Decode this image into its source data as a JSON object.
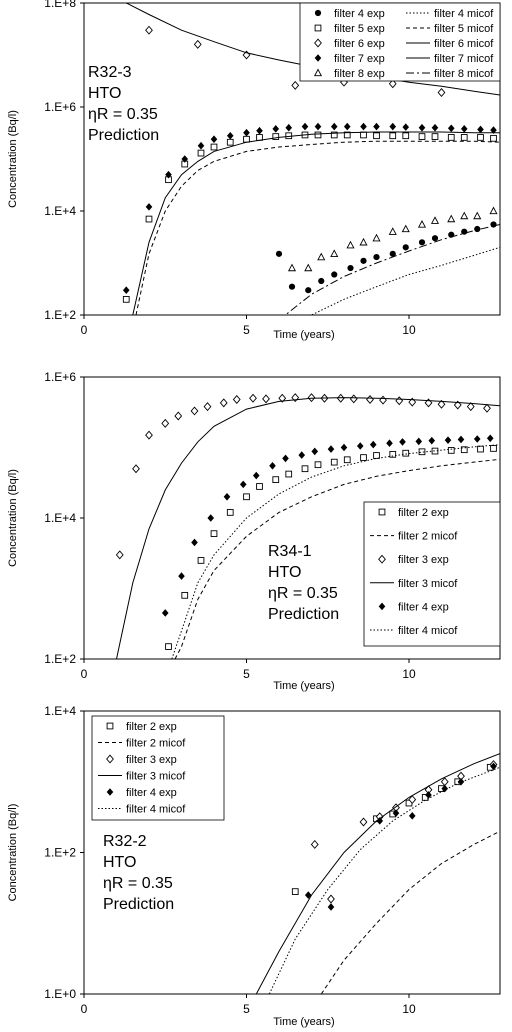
{
  "chart_data": [
    {
      "type": "scatter",
      "xlabel": "Time (years)",
      "ylabel": "Concentration (Bq/l)",
      "xlim": [
        0,
        12.8
      ],
      "ylim": [
        100,
        100000000
      ],
      "yscale": "log",
      "xticks": [
        "0",
        "5",
        "10"
      ],
      "yticks": [
        "1.E+2",
        "1.E+4",
        "1.E+6",
        "1.E+8"
      ],
      "legend_position": "top-right",
      "legend_columns": 2,
      "annotation": [
        "R32-3",
        "HTO",
        "ηR = 0.35",
        "Prediction"
      ],
      "series": [
        {
          "name": "filter 4 exp",
          "kind": "points",
          "marker": "circle-filled",
          "x": [
            6.0,
            6.4,
            6.9,
            7.3,
            7.7,
            8.2,
            8.6,
            9.0,
            9.5,
            9.9,
            10.4,
            10.8,
            11.3,
            11.7,
            12.1,
            12.6
          ],
          "y": [
            1500,
            350,
            300,
            450,
            600,
            800,
            1100,
            1300,
            1500,
            2000,
            2500,
            3000,
            3500,
            4000,
            4500,
            5500
          ]
        },
        {
          "name": "filter 5 exp",
          "kind": "points",
          "marker": "square-open",
          "x": [
            1.3,
            2.0,
            2.6,
            3.1,
            3.6,
            4.0,
            4.5,
            5.0,
            5.4,
            5.9,
            6.3,
            6.8,
            7.2,
            7.7,
            8.1,
            8.6,
            9.0,
            9.5,
            9.9,
            10.4,
            10.8,
            11.3,
            11.7,
            12.2,
            12.6
          ],
          "y": [
            200,
            7000,
            40000,
            80000,
            130000,
            170000,
            210000,
            240000,
            260000,
            270000,
            280000,
            290000,
            290000,
            290000,
            290000,
            290000,
            280000,
            280000,
            280000,
            270000,
            270000,
            260000,
            260000,
            260000,
            250000
          ]
        },
        {
          "name": "filter 6 exp",
          "kind": "points",
          "marker": "diamond-open",
          "x": [
            2.0,
            3.5,
            5.0,
            6.5,
            8.0,
            9.5,
            11.0
          ],
          "y": [
            30000000,
            16000000,
            10000000,
            2600000,
            3000000,
            2800000,
            1900000
          ]
        },
        {
          "name": "filter 7 exp",
          "kind": "points",
          "marker": "diamond-filled",
          "x": [
            1.3,
            2.0,
            2.6,
            3.1,
            3.6,
            4.0,
            4.5,
            5.0,
            5.4,
            5.9,
            6.3,
            6.8,
            7.2,
            7.7,
            8.1,
            8.6,
            9.0,
            9.5,
            9.9,
            10.4,
            10.8,
            11.3,
            11.7,
            12.2,
            12.6
          ],
          "y": [
            300,
            12000,
            50000,
            100000,
            180000,
            240000,
            280000,
            320000,
            350000,
            380000,
            400000,
            420000,
            420000,
            420000,
            420000,
            420000,
            420000,
            420000,
            410000,
            400000,
            400000,
            390000,
            380000,
            370000,
            360000
          ]
        },
        {
          "name": "filter 8 exp",
          "kind": "points",
          "marker": "triangle-open",
          "x": [
            6.4,
            6.9,
            7.3,
            7.7,
            8.2,
            8.6,
            9.0,
            9.5,
            9.9,
            10.4,
            10.8,
            11.3,
            11.7,
            12.1,
            12.6
          ],
          "y": [
            800,
            800,
            1300,
            1500,
            2200,
            2500,
            3000,
            4000,
            4500,
            5500,
            6500,
            7000,
            8000,
            8000,
            10000
          ]
        },
        {
          "name": "filter 4 micof",
          "kind": "line",
          "dash": "1.5,2",
          "x": [
            6.3,
            7.0,
            8.0,
            9.0,
            10.0,
            11.0,
            12.0,
            12.8
          ],
          "y": [
            50,
            100,
            200,
            350,
            600,
            900,
            1400,
            2000
          ]
        },
        {
          "name": "filter 5 micof",
          "kind": "line",
          "dash": "4,3",
          "x": [
            1.6,
            2.0,
            2.5,
            3.0,
            3.5,
            4.0,
            5.0,
            6.0,
            7.0,
            8.0,
            9.0,
            10.0,
            11.0,
            12.0,
            12.8
          ],
          "y": [
            100,
            1500,
            10000,
            30000,
            60000,
            90000,
            140000,
            170000,
            190000,
            210000,
            220000,
            220000,
            220000,
            220000,
            210000
          ]
        },
        {
          "name": "filter 6 micof",
          "kind": "line",
          "dash": "",
          "x": [
            1.3,
            2.0,
            3.0,
            4.0,
            5.0,
            6.0,
            7.0,
            8.0,
            9.0,
            10.0,
            11.0,
            12.0,
            12.8
          ],
          "y": [
            100000000,
            60000000,
            30000000,
            18000000,
            11000000,
            8000000,
            6000000,
            4700000,
            3800000,
            3000000,
            2500000,
            2000000,
            1700000
          ]
        },
        {
          "name": "filter 7 micof",
          "kind": "line",
          "dash": "",
          "x": [
            1.5,
            2.0,
            2.5,
            3.0,
            3.5,
            4.0,
            5.0,
            6.0,
            7.0,
            8.0,
            9.0,
            10.0,
            11.0,
            12.0,
            12.8
          ],
          "y": [
            100,
            2500,
            18000,
            50000,
            90000,
            140000,
            210000,
            260000,
            300000,
            320000,
            330000,
            330000,
            330000,
            320000,
            320000
          ]
        },
        {
          "name": "filter 8 micof",
          "kind": "line",
          "dash": "8,3,2,3",
          "x": [
            5.6,
            6.0,
            7.0,
            8.0,
            9.0,
            10.0,
            11.0,
            12.0,
            12.8
          ],
          "y": [
            50,
            80,
            250,
            550,
            1000,
            1700,
            2800,
            4200,
            5500
          ]
        }
      ]
    },
    {
      "type": "scatter",
      "xlabel": "Time (years)",
      "ylabel": "Concentration (Bq/l)",
      "xlim": [
        0,
        12.8
      ],
      "ylim": [
        100,
        1000000
      ],
      "yscale": "log",
      "xticks": [
        "0",
        "5",
        "10"
      ],
      "yticks": [
        "1.E+2",
        "1.E+4",
        "1.E+6"
      ],
      "legend_position": "bottom-right",
      "legend_columns": 1,
      "annotation": [
        "R34-1",
        "HTO",
        "ηR = 0.35",
        "Prediction"
      ],
      "series": [
        {
          "name": "filter 2 exp",
          "kind": "points",
          "marker": "square-open",
          "x": [
            2.6,
            3.1,
            3.6,
            4.0,
            4.5,
            5.0,
            5.4,
            5.9,
            6.3,
            6.8,
            7.2,
            7.7,
            8.1,
            8.6,
            9.0,
            9.5,
            9.9,
            10.4,
            10.8,
            11.3,
            11.7,
            12.2,
            12.6
          ],
          "y": [
            150,
            800,
            2500,
            6000,
            12000,
            20000,
            28000,
            35000,
            42000,
            50000,
            57000,
            62000,
            67000,
            72000,
            77000,
            80000,
            83000,
            87000,
            89000,
            91000,
            93000,
            95000,
            97000
          ]
        },
        {
          "name": "filter 2 micof",
          "kind": "line",
          "dash": "4,3",
          "x": [
            2.8,
            3.0,
            3.5,
            4.0,
            5.0,
            6.0,
            7.0,
            8.0,
            9.0,
            10.0,
            11.0,
            12.0,
            12.8
          ],
          "y": [
            100,
            150,
            700,
            1800,
            5500,
            12000,
            20000,
            30000,
            39000,
            47000,
            55000,
            62000,
            68000
          ]
        },
        {
          "name": "filter 3 exp",
          "kind": "points",
          "marker": "diamond-open",
          "x": [
            1.1,
            1.6,
            2.0,
            2.5,
            2.9,
            3.4,
            3.8,
            4.3,
            4.7,
            5.2,
            5.6,
            6.1,
            6.5,
            7.0,
            7.4,
            7.9,
            8.3,
            8.8,
            9.2,
            9.7,
            10.1,
            10.6,
            11.0,
            11.5,
            11.9,
            12.4
          ],
          "y": [
            3000,
            50000,
            150000,
            220000,
            280000,
            330000,
            380000,
            430000,
            480000,
            500000,
            490000,
            500000,
            510000,
            510000,
            500000,
            500000,
            490000,
            480000,
            470000,
            460000,
            440000,
            430000,
            410000,
            400000,
            380000,
            360000
          ]
        },
        {
          "name": "filter 3 micof",
          "kind": "line",
          "dash": "",
          "x": [
            1.0,
            1.5,
            2.0,
            2.5,
            3.0,
            3.5,
            4.0,
            5.0,
            6.0,
            7.0,
            8.0,
            9.0,
            10.0,
            11.0,
            12.0,
            12.8
          ],
          "y": [
            100,
            1200,
            7000,
            25000,
            60000,
            120000,
            200000,
            350000,
            450000,
            500000,
            510000,
            500000,
            480000,
            450000,
            420000,
            390000
          ]
        },
        {
          "name": "filter 4 exp",
          "kind": "points",
          "marker": "diamond-filled",
          "x": [
            2.5,
            3.0,
            3.4,
            3.9,
            4.4,
            4.9,
            5.3,
            5.8,
            6.2,
            6.7,
            7.1,
            7.6,
            8.0,
            8.5,
            8.9,
            9.4,
            9.8,
            10.3,
            10.7,
            11.2,
            11.6,
            12.1,
            12.5
          ],
          "y": [
            450,
            1500,
            4500,
            10000,
            20000,
            30000,
            40000,
            55000,
            70000,
            78000,
            88000,
            95000,
            100000,
            105000,
            110000,
            115000,
            120000,
            122000,
            125000,
            127000,
            130000,
            132000,
            135000
          ]
        },
        {
          "name": "filter 4 micof",
          "kind": "line",
          "dash": "1.5,2",
          "x": [
            2.7,
            3.0,
            3.5,
            4.0,
            5.0,
            6.0,
            7.0,
            8.0,
            9.0,
            10.0,
            11.0,
            12.0,
            12.8
          ],
          "y": [
            100,
            250,
            1200,
            3000,
            10000,
            22000,
            38000,
            55000,
            70000,
            82000,
            92000,
            102000,
            110000
          ]
        }
      ]
    },
    {
      "type": "scatter",
      "xlabel": "Time (years)",
      "ylabel": "Concentration (Bq/l)",
      "xlim": [
        0,
        12.8
      ],
      "ylim": [
        1,
        10000
      ],
      "yscale": "log",
      "xticks": [
        "0",
        "5",
        "10"
      ],
      "yticks": [
        "1.E+0",
        "1.E+2",
        "1.E+4"
      ],
      "legend_position": "top-left",
      "legend_columns": 1,
      "annotation": [
        "R32-2",
        "HTO",
        "ηR = 0.35",
        "Prediction"
      ],
      "series": [
        {
          "name": "filter 2 exp",
          "kind": "points",
          "marker": "square-open",
          "x": [
            6.5,
            9.0,
            9.5,
            10.0,
            10.5,
            11.0,
            11.5,
            12.5
          ],
          "y": [
            28,
            300,
            350,
            500,
            600,
            800,
            1000,
            1600
          ]
        },
        {
          "name": "filter 2 micof",
          "kind": "line",
          "dash": "4,3",
          "x": [
            7.3,
            8.0,
            9.0,
            10.0,
            11.0,
            12.0,
            12.8
          ],
          "y": [
            1,
            3,
            10,
            30,
            70,
            130,
            200
          ]
        },
        {
          "name": "filter 3 exp",
          "kind": "points",
          "marker": "diamond-open",
          "x": [
            7.1,
            7.6,
            8.6,
            9.1,
            9.6,
            10.1,
            10.6,
            11.1,
            11.6,
            12.6
          ],
          "y": [
            130,
            22,
            270,
            320,
            430,
            560,
            770,
            1000,
            1200,
            1750
          ]
        },
        {
          "name": "filter 3 micof",
          "kind": "line",
          "dash": "",
          "x": [
            5.3,
            6.0,
            7.0,
            8.0,
            9.0,
            10.0,
            11.0,
            12.0,
            12.8
          ],
          "y": [
            1,
            4,
            25,
            100,
            280,
            600,
            1100,
            1800,
            2500
          ]
        },
        {
          "name": "filter 4 exp",
          "kind": "points",
          "marker": "diamond-filled",
          "x": [
            6.9,
            7.6,
            9.1,
            9.6,
            10.1,
            10.6,
            11.1,
            11.6,
            12.6
          ],
          "y": [
            25,
            17,
            280,
            360,
            330,
            650,
            800,
            1000,
            1650
          ]
        },
        {
          "name": "filter 4 micof",
          "kind": "line",
          "dash": "1.5,2",
          "x": [
            5.7,
            6.5,
            7.5,
            8.5,
            9.5,
            10.5,
            11.5,
            12.8
          ],
          "y": [
            1,
            6,
            30,
            110,
            280,
            550,
            950,
            1600
          ]
        }
      ]
    }
  ]
}
